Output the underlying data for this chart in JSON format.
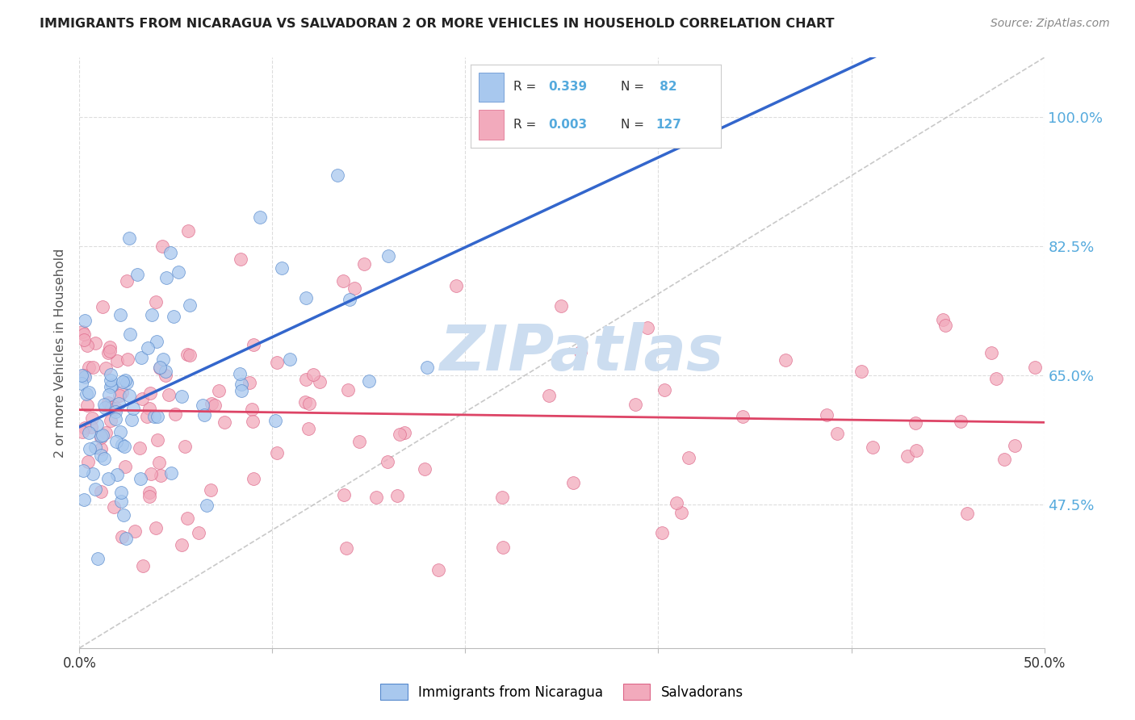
{
  "title": "IMMIGRANTS FROM NICARAGUA VS SALVADORAN 2 OR MORE VEHICLES IN HOUSEHOLD CORRELATION CHART",
  "source": "Source: ZipAtlas.com",
  "ylabel": "2 or more Vehicles in Household",
  "legend_label_blue": "Immigrants from Nicaragua",
  "legend_label_pink": "Salvadorans",
  "blue_color": "#A8C8EE",
  "pink_color": "#F2AABC",
  "blue_edge_color": "#5588CC",
  "pink_edge_color": "#DD6688",
  "blue_line_color": "#3366CC",
  "pink_line_color": "#DD4466",
  "dashed_line_color": "#BBBBBB",
  "title_color": "#222222",
  "tick_color_right": "#55AADD",
  "grid_color": "#DDDDDD",
  "r_n_color": "#55AADD",
  "watermark_color": "#CCDDF0",
  "xlim": [
    0,
    50
  ],
  "ylim": [
    28,
    108
  ],
  "yticks": [
    47.5,
    65.0,
    82.5,
    100.0
  ],
  "ytick_labels": [
    "47.5%",
    "65.0%",
    "82.5%",
    "100.0%"
  ],
  "xticks": [
    0,
    10,
    20,
    30,
    40,
    50
  ],
  "xtick_labels": [
    "0.0%",
    "",
    "",
    "",
    "",
    "50.0%"
  ]
}
